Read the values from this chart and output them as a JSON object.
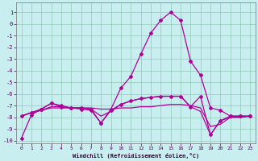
{
  "xlabel": "Windchill (Refroidissement éolien,°C)",
  "ylabel": "",
  "xlim": [
    -0.5,
    23.5
  ],
  "ylim": [
    -10.2,
    1.8
  ],
  "yticks": [
    1,
    0,
    -1,
    -2,
    -3,
    -4,
    -5,
    -6,
    -7,
    -8,
    -9,
    -10
  ],
  "xticks": [
    0,
    1,
    2,
    3,
    4,
    5,
    6,
    7,
    8,
    9,
    10,
    11,
    12,
    13,
    14,
    15,
    16,
    17,
    18,
    19,
    20,
    21,
    22,
    23
  ],
  "background_color": "#c8eef0",
  "grid_color": "#90c8b8",
  "line_color": "#b0009a",
  "lines": [
    {
      "x": [
        0,
        1,
        2,
        3,
        4,
        5,
        6,
        7,
        8,
        9,
        10,
        11,
        12,
        13,
        14,
        15,
        16,
        17,
        18,
        19,
        20,
        21,
        22,
        23
      ],
      "y": [
        -9.8,
        -7.8,
        -7.3,
        -6.8,
        -7.0,
        -7.2,
        -7.3,
        -7.4,
        -8.5,
        -7.3,
        -5.5,
        -4.5,
        -2.6,
        -0.8,
        0.3,
        1.0,
        0.3,
        -3.2,
        -4.4,
        -7.2,
        -7.4,
        -7.9,
        -7.9,
        -7.9
      ],
      "marker": "D",
      "markersize": 2.0,
      "lw": 0.9
    },
    {
      "x": [
        0,
        1,
        2,
        3,
        4,
        5,
        6,
        7,
        8,
        9,
        10,
        11,
        12,
        13,
        14,
        15,
        16,
        17,
        18,
        19,
        20,
        21,
        22,
        23
      ],
      "y": [
        -7.9,
        -7.6,
        -7.4,
        -7.2,
        -7.2,
        -7.2,
        -7.2,
        -7.2,
        -7.3,
        -7.3,
        -7.2,
        -7.2,
        -7.1,
        -7.1,
        -7.0,
        -6.9,
        -6.9,
        -7.0,
        -7.2,
        -8.8,
        -8.6,
        -8.0,
        -8.0,
        -7.9
      ],
      "marker": null,
      "markersize": 0,
      "lw": 0.9
    },
    {
      "x": [
        0,
        1,
        2,
        3,
        4,
        5,
        6,
        7,
        8,
        9,
        10,
        11,
        12,
        13,
        14,
        15,
        16,
        17,
        18,
        19,
        20,
        21,
        22,
        23
      ],
      "y": [
        -7.9,
        -7.6,
        -7.4,
        -7.1,
        -7.1,
        -7.2,
        -7.2,
        -7.3,
        -7.9,
        -7.5,
        -6.9,
        -6.6,
        -6.4,
        -6.3,
        -6.2,
        -6.2,
        -6.2,
        -7.1,
        -7.5,
        -9.5,
        -8.3,
        -8.0,
        -8.0,
        -7.9
      ],
      "marker": null,
      "markersize": 0,
      "lw": 0.9
    },
    {
      "x": [
        0,
        1,
        2,
        3,
        4,
        5,
        6,
        7,
        8,
        9,
        10,
        11,
        12,
        13,
        14,
        15,
        16,
        17,
        18,
        19,
        20,
        21,
        22,
        23
      ],
      "y": [
        -7.9,
        -7.6,
        -7.3,
        -6.8,
        -7.1,
        -7.2,
        -7.2,
        -7.3,
        -8.5,
        -7.4,
        -6.9,
        -6.6,
        -6.4,
        -6.3,
        -6.2,
        -6.2,
        -6.2,
        -7.1,
        -6.2,
        -9.5,
        -8.3,
        -7.9,
        -7.9,
        -7.9
      ],
      "marker": "D",
      "markersize": 2.0,
      "lw": 0.9
    }
  ]
}
